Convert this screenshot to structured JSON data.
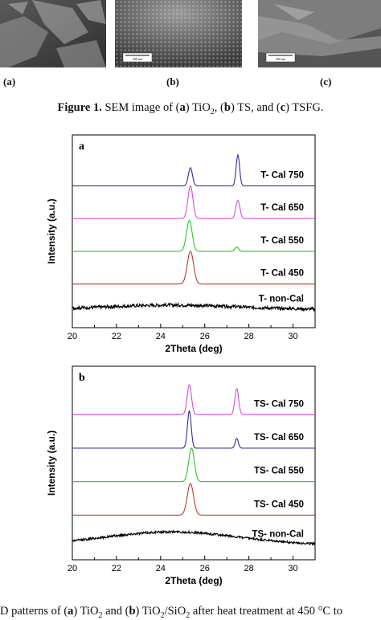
{
  "figure1": {
    "panel_labels": [
      "(a)",
      "(b)",
      "(c)"
    ],
    "scale_bar_label": "500 nm",
    "caption": {
      "label": "Figure 1.",
      "text_parts": [
        " SEM image of (",
        "a",
        ") TiO",
        "2",
        ", (",
        "b",
        ") TS, and (",
        "c",
        ") TSFG."
      ]
    }
  },
  "chart_data": [
    {
      "type": "line",
      "panel_letter": "a",
      "xlabel": "2Theta (deg)",
      "ylabel": "Intensity (a.u.)",
      "xlim": [
        20,
        31
      ],
      "x_ticks": [
        20,
        22,
        24,
        26,
        28,
        30
      ],
      "y_ticks": false,
      "grid": false,
      "series": [
        {
          "name": "T- non-Cal",
          "color": "#000000",
          "offset": 0,
          "noise": 0.9,
          "background": 1.2,
          "peaks": []
        },
        {
          "name": "T- Cal 450",
          "color": "#c0392b",
          "offset": 7,
          "noise": 0.0,
          "background": 0,
          "peaks": [
            {
              "x": 25.35,
              "height": 9.0,
              "width": 0.2
            }
          ]
        },
        {
          "name": "T- Cal 550",
          "color": "#22c922",
          "offset": 16,
          "noise": 0.0,
          "background": 0,
          "peaks": [
            {
              "x": 25.3,
              "height": 8.5,
              "width": 0.18
            },
            {
              "x": 27.45,
              "height": 1.2,
              "width": 0.12
            }
          ]
        },
        {
          "name": "T- Cal 650",
          "color": "#d94bd9",
          "offset": 25,
          "noise": 0.0,
          "background": 0,
          "peaks": [
            {
              "x": 25.35,
              "height": 9.0,
              "width": 0.16
            },
            {
              "x": 27.5,
              "height": 5.0,
              "width": 0.13
            }
          ]
        },
        {
          "name": "T- Cal 750",
          "color": "#2e3192",
          "offset": 34,
          "noise": 0.0,
          "background": 0,
          "peaks": [
            {
              "x": 25.35,
              "height": 5.0,
              "width": 0.13
            },
            {
              "x": 27.5,
              "height": 8.5,
              "width": 0.11
            }
          ]
        }
      ],
      "ylim": [
        -5,
        48
      ]
    },
    {
      "type": "line",
      "panel_letter": "b",
      "xlabel": "2Theta (deg)",
      "ylabel": "Intensity (a.u.)",
      "xlim": [
        20,
        31
      ],
      "x_ticks": [
        20,
        22,
        24,
        26,
        28,
        30
      ],
      "y_ticks": false,
      "grid": false,
      "series": [
        {
          "name": "TS- non-Cal",
          "color": "#000000",
          "offset": 0,
          "noise": 0.6,
          "background": 3.5,
          "peaks": []
        },
        {
          "name": "TS- Cal 450",
          "color": "#c0392b",
          "offset": 8,
          "noise": 0.0,
          "background": 0,
          "peaks": [
            {
              "x": 25.35,
              "height": 8.5,
              "width": 0.2
            }
          ]
        },
        {
          "name": "TS- Cal 550",
          "color": "#22c922",
          "offset": 17,
          "noise": 0.0,
          "background": 0,
          "peaks": [
            {
              "x": 25.4,
              "height": 9.0,
              "width": 0.18
            }
          ]
        },
        {
          "name": "TS- Cal 650",
          "color": "#2e3192",
          "offset": 26,
          "noise": 0.0,
          "background": 0,
          "peaks": [
            {
              "x": 25.3,
              "height": 10.0,
              "width": 0.12
            },
            {
              "x": 27.45,
              "height": 2.6,
              "width": 0.1
            }
          ]
        },
        {
          "name": "TS- Cal 750",
          "color": "#d94bd9",
          "offset": 35,
          "noise": 0.0,
          "background": 0,
          "peaks": [
            {
              "x": 25.3,
              "height": 8.0,
              "width": 0.14
            },
            {
              "x": 27.45,
              "height": 7.0,
              "width": 0.12
            }
          ]
        }
      ],
      "ylim": [
        -4,
        48
      ]
    }
  ],
  "figure2": {
    "caption_parts": [
      "D patterns of (",
      "a",
      ") TiO",
      "2",
      " and (",
      "b",
      ") TiO",
      "2",
      "/SiO",
      "2",
      " after heat treatment at 450 °C to"
    ]
  }
}
